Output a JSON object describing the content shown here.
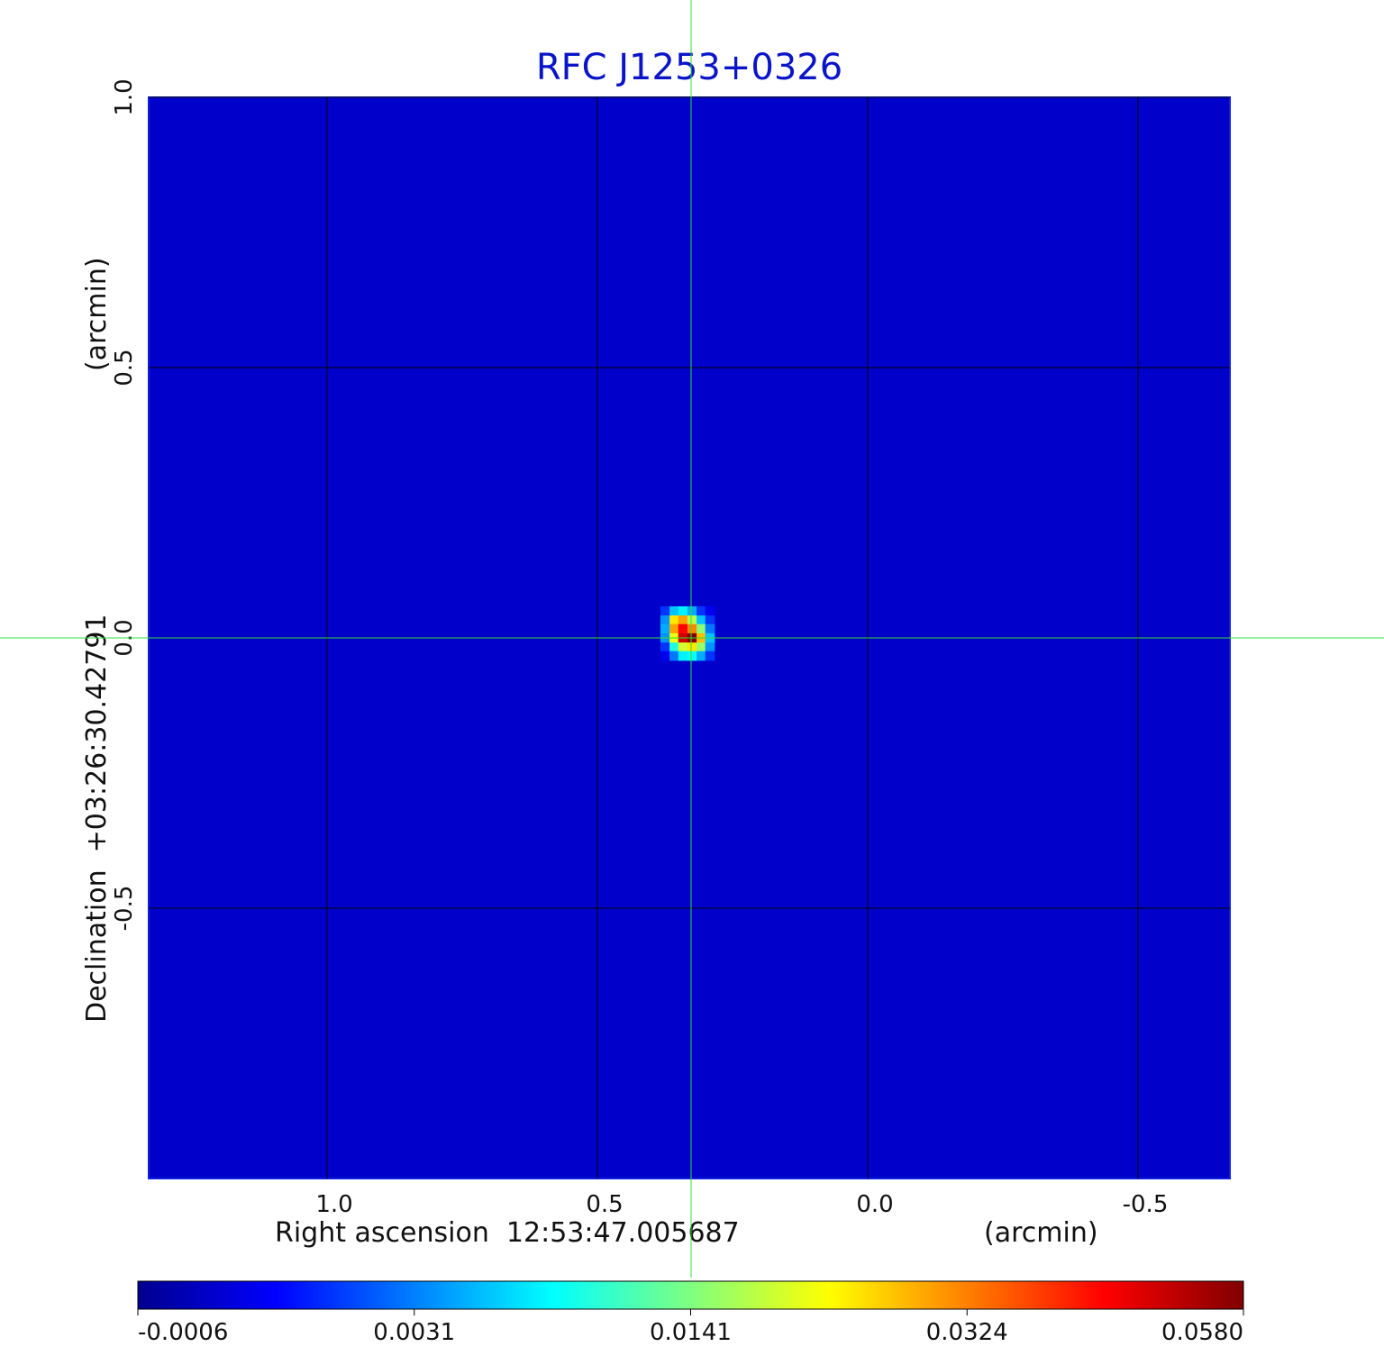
{
  "chart_data": {
    "type": "image",
    "title": "RFC J1253+0326",
    "x_label": "Right ascension  12:53:47.005687",
    "x_unit": "(arcmin)",
    "y_label": "Declination  +03:26:30.42791",
    "y_unit": "(arcmin)",
    "xlim": [
      1.33,
      -0.67
    ],
    "ylim": [
      -1.0,
      1.0
    ],
    "xticks": [
      {
        "value": 1,
        "label": "1.0"
      },
      0.5,
      {
        "value": 0,
        "label": "0.0"
      },
      -0.5
    ],
    "yticks": [
      {
        "value": -0.5,
        "label": "-0.5"
      },
      {
        "value": 0,
        "label": "0.0"
      },
      0.5,
      {
        "value": 1,
        "label": "1.0"
      }
    ],
    "grid": true,
    "colormap": "jet",
    "colorbar_ticks": [
      -0.0006,
      0.0031,
      0.0141,
      0.0324,
      {
        "value": 0.058,
        "label": "0.0580"
      }
    ],
    "background": 0.0005,
    "source_pixels": {
      "x": [
        0.375,
        0.358,
        0.342,
        0.325,
        0.308,
        0.292
      ],
      "y": [
        0.05,
        0.033,
        0.017,
        0,
        -0.017,
        -0.033
      ],
      "values": [
        [
          0.002,
          0.006,
          0.008,
          0.005,
          0.002,
          0.001
        ],
        [
          0.004,
          0.025,
          0.03,
          0.018,
          0.006,
          0.002
        ],
        [
          0.005,
          0.03,
          0.045,
          0.032,
          0.015,
          0.003
        ],
        [
          0.004,
          0.022,
          0.05,
          0.058,
          0.028,
          0.006
        ],
        [
          0.002,
          0.01,
          0.02,
          0.025,
          0.016,
          0.004
        ],
        [
          0.001,
          0.003,
          0.008,
          0.009,
          0.005,
          0.002
        ]
      ]
    }
  }
}
